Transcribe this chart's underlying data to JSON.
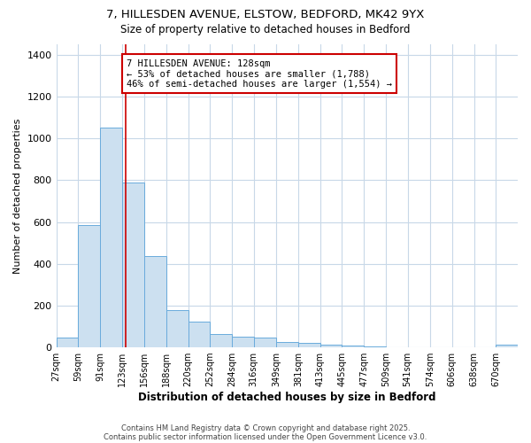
{
  "title1": "7, HILLESDEN AVENUE, ELSTOW, BEDFORD, MK42 9YX",
  "title2": "Size of property relative to detached houses in Bedford",
  "xlabel": "Distribution of detached houses by size in Bedford",
  "ylabel": "Number of detached properties",
  "bin_labels": [
    "27sqm",
    "59sqm",
    "91sqm",
    "123sqm",
    "156sqm",
    "188sqm",
    "220sqm",
    "252sqm",
    "284sqm",
    "316sqm",
    "349sqm",
    "381sqm",
    "413sqm",
    "445sqm",
    "477sqm",
    "509sqm",
    "541sqm",
    "574sqm",
    "606sqm",
    "638sqm",
    "670sqm"
  ],
  "bin_edges": [
    27,
    59,
    91,
    123,
    156,
    188,
    220,
    252,
    284,
    316,
    349,
    381,
    413,
    445,
    477,
    509,
    541,
    574,
    606,
    638,
    670,
    702
  ],
  "bar_heights": [
    45,
    585,
    1050,
    790,
    435,
    180,
    125,
    65,
    50,
    45,
    25,
    22,
    15,
    7,
    5,
    0,
    0,
    0,
    0,
    0,
    12
  ],
  "bar_facecolor": "#cce0f0",
  "bar_edgecolor": "#6aabdc",
  "vline_x": 128,
  "vline_color": "#cc0000",
  "annotation_text": "7 HILLESDEN AVENUE: 128sqm\n← 53% of detached houses are smaller (1,788)\n46% of semi-detached houses are larger (1,554) →",
  "annotation_boxcolor": "white",
  "annotation_edgecolor": "#cc0000",
  "ylim": [
    0,
    1450
  ],
  "yticks": [
    0,
    200,
    400,
    600,
    800,
    1000,
    1200,
    1400
  ],
  "fig_bg_color": "#ffffff",
  "plot_bg_color": "#ffffff",
  "grid_color": "#c8d8e8",
  "footnote1": "Contains HM Land Registry data © Crown copyright and database right 2025.",
  "footnote2": "Contains public sector information licensed under the Open Government Licence v3.0."
}
